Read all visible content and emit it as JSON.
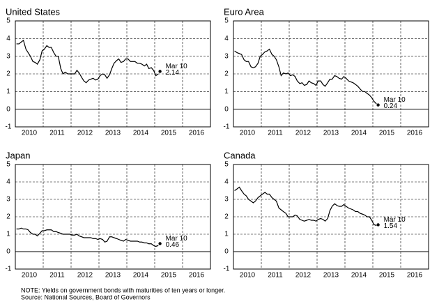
{
  "chart_data": [
    {
      "type": "line",
      "title": "United States",
      "xlim": [
        2010,
        2017
      ],
      "ylim": [
        -1,
        5
      ],
      "yticks": [
        -1,
        0,
        1,
        2,
        3,
        4,
        5
      ],
      "xticks": [
        {
          "value": 2010.5,
          "label": "2010"
        },
        {
          "value": 2011.5,
          "label": "2011"
        },
        {
          "value": 2012.5,
          "label": "2012"
        },
        {
          "value": 2013.5,
          "label": "2013"
        },
        {
          "value": 2014.5,
          "label": "2014"
        },
        {
          "value": 2015.5,
          "label": "2015"
        },
        {
          "value": 2016.5,
          "label": "2016"
        }
      ],
      "xgrid": [
        2011,
        2012,
        2013,
        2014,
        2015,
        2016
      ],
      "grid": true,
      "color": "#000000",
      "x": [
        2010.04,
        2010.13,
        2010.21,
        2010.29,
        2010.38,
        2010.46,
        2010.54,
        2010.63,
        2010.71,
        2010.79,
        2010.88,
        2010.96,
        2011.04,
        2011.13,
        2011.21,
        2011.29,
        2011.38,
        2011.46,
        2011.54,
        2011.63,
        2011.71,
        2011.79,
        2011.88,
        2011.96,
        2012.04,
        2012.13,
        2012.21,
        2012.29,
        2012.38,
        2012.46,
        2012.54,
        2012.63,
        2012.71,
        2012.79,
        2012.88,
        2012.96,
        2013.04,
        2013.13,
        2013.21,
        2013.29,
        2013.38,
        2013.46,
        2013.54,
        2013.63,
        2013.71,
        2013.79,
        2013.88,
        2013.96,
        2014.04,
        2014.13,
        2014.21,
        2014.29,
        2014.38,
        2014.46,
        2014.54,
        2014.63,
        2014.71,
        2014.79,
        2014.88,
        2014.96,
        2015.04,
        2015.13
      ],
      "values": [
        3.7,
        3.7,
        3.8,
        3.9,
        3.4,
        3.2,
        3.0,
        2.7,
        2.65,
        2.55,
        2.8,
        3.3,
        3.4,
        3.6,
        3.5,
        3.5,
        3.2,
        3.0,
        3.0,
        2.3,
        2.0,
        2.1,
        2.0,
        2.0,
        2.0,
        2.0,
        2.2,
        2.05,
        1.8,
        1.6,
        1.5,
        1.65,
        1.7,
        1.75,
        1.65,
        1.7,
        1.9,
        2.0,
        1.95,
        1.75,
        1.95,
        2.3,
        2.6,
        2.75,
        2.85,
        2.65,
        2.7,
        2.85,
        2.85,
        2.7,
        2.7,
        2.7,
        2.6,
        2.6,
        2.55,
        2.45,
        2.55,
        2.3,
        2.35,
        2.2,
        1.9,
        2.0
      ],
      "point": {
        "x": 2015.19,
        "value": 2.14,
        "label": "Mar 10"
      }
    },
    {
      "type": "line",
      "title": "Euro Area",
      "xlim": [
        2010,
        2017
      ],
      "ylim": [
        -1,
        5
      ],
      "yticks": [
        -1,
        0,
        1,
        2,
        3,
        4,
        5
      ],
      "xticks": [
        {
          "value": 2010.5,
          "label": "2010"
        },
        {
          "value": 2011.5,
          "label": "2011"
        },
        {
          "value": 2012.5,
          "label": "2012"
        },
        {
          "value": 2013.5,
          "label": "2013"
        },
        {
          "value": 2014.5,
          "label": "2014"
        },
        {
          "value": 2015.5,
          "label": "2015"
        },
        {
          "value": 2016.5,
          "label": "2016"
        }
      ],
      "xgrid": [
        2011,
        2012,
        2013,
        2014,
        2015,
        2016
      ],
      "grid": true,
      "color": "#000000",
      "x": [
        2010.04,
        2010.13,
        2010.21,
        2010.29,
        2010.38,
        2010.46,
        2010.54,
        2010.63,
        2010.71,
        2010.79,
        2010.88,
        2010.96,
        2011.04,
        2011.13,
        2011.21,
        2011.29,
        2011.38,
        2011.46,
        2011.54,
        2011.63,
        2011.71,
        2011.79,
        2011.88,
        2011.96,
        2012.04,
        2012.13,
        2012.21,
        2012.29,
        2012.38,
        2012.46,
        2012.54,
        2012.63,
        2012.71,
        2012.79,
        2012.88,
        2012.96,
        2013.04,
        2013.13,
        2013.21,
        2013.29,
        2013.38,
        2013.46,
        2013.54,
        2013.63,
        2013.71,
        2013.79,
        2013.88,
        2013.96,
        2014.04,
        2014.13,
        2014.21,
        2014.29,
        2014.38,
        2014.46,
        2014.54,
        2014.63,
        2014.71,
        2014.79,
        2014.88,
        2014.96,
        2015.04,
        2015.13
      ],
      "values": [
        3.3,
        3.2,
        3.15,
        3.1,
        2.8,
        2.7,
        2.7,
        2.4,
        2.35,
        2.4,
        2.6,
        3.0,
        3.1,
        3.25,
        3.3,
        3.4,
        3.1,
        3.0,
        2.8,
        2.4,
        1.9,
        2.05,
        2.0,
        2.05,
        1.9,
        1.95,
        1.85,
        1.6,
        1.45,
        1.5,
        1.35,
        1.4,
        1.6,
        1.5,
        1.45,
        1.35,
        1.6,
        1.6,
        1.4,
        1.3,
        1.5,
        1.7,
        1.7,
        1.9,
        1.85,
        1.75,
        1.7,
        1.85,
        1.75,
        1.6,
        1.55,
        1.5,
        1.4,
        1.3,
        1.15,
        1.0,
        1.0,
        0.9,
        0.8,
        0.65,
        0.45,
        0.3
      ],
      "point": {
        "x": 2015.19,
        "value": 0.24,
        "label": "Mar 10"
      }
    },
    {
      "type": "line",
      "title": "Japan",
      "xlim": [
        2010,
        2017
      ],
      "ylim": [
        -1,
        5
      ],
      "yticks": [
        -1,
        0,
        1,
        2,
        3,
        4,
        5
      ],
      "xticks": [
        {
          "value": 2010.5,
          "label": "2010"
        },
        {
          "value": 2011.5,
          "label": "2011"
        },
        {
          "value": 2012.5,
          "label": "2012"
        },
        {
          "value": 2013.5,
          "label": "2013"
        },
        {
          "value": 2014.5,
          "label": "2014"
        },
        {
          "value": 2015.5,
          "label": "2015"
        },
        {
          "value": 2016.5,
          "label": "2016"
        }
      ],
      "xgrid": [
        2011,
        2012,
        2013,
        2014,
        2015,
        2016
      ],
      "grid": true,
      "color": "#000000",
      "x": [
        2010.04,
        2010.13,
        2010.21,
        2010.29,
        2010.38,
        2010.46,
        2010.54,
        2010.63,
        2010.71,
        2010.79,
        2010.88,
        2010.96,
        2011.04,
        2011.13,
        2011.21,
        2011.29,
        2011.38,
        2011.46,
        2011.54,
        2011.63,
        2011.71,
        2011.79,
        2011.88,
        2011.96,
        2012.04,
        2012.13,
        2012.21,
        2012.29,
        2012.38,
        2012.46,
        2012.54,
        2012.63,
        2012.71,
        2012.79,
        2012.88,
        2012.96,
        2013.04,
        2013.13,
        2013.21,
        2013.29,
        2013.38,
        2013.46,
        2013.54,
        2013.63,
        2013.71,
        2013.79,
        2013.88,
        2013.96,
        2014.04,
        2014.13,
        2014.21,
        2014.29,
        2014.38,
        2014.46,
        2014.54,
        2014.63,
        2014.71,
        2014.79,
        2014.88,
        2014.96,
        2015.04,
        2015.13
      ],
      "values": [
        1.3,
        1.3,
        1.35,
        1.3,
        1.3,
        1.25,
        1.1,
        1.0,
        1.0,
        0.9,
        1.05,
        1.2,
        1.2,
        1.25,
        1.25,
        1.25,
        1.15,
        1.15,
        1.1,
        1.05,
        1.0,
        1.0,
        1.0,
        1.0,
        0.95,
        0.95,
        1.0,
        0.9,
        0.85,
        0.8,
        0.8,
        0.8,
        0.8,
        0.75,
        0.75,
        0.7,
        0.75,
        0.7,
        0.55,
        0.6,
        0.85,
        0.85,
        0.8,
        0.75,
        0.7,
        0.65,
        0.6,
        0.7,
        0.65,
        0.6,
        0.6,
        0.6,
        0.6,
        0.55,
        0.55,
        0.5,
        0.5,
        0.45,
        0.45,
        0.35,
        0.3,
        0.35
      ],
      "point": {
        "x": 2015.19,
        "value": 0.46,
        "label": "Mar 10"
      }
    },
    {
      "type": "line",
      "title": "Canada",
      "xlim": [
        2010,
        2017
      ],
      "ylim": [
        -1,
        5
      ],
      "yticks": [
        -1,
        0,
        1,
        2,
        3,
        4,
        5
      ],
      "xticks": [
        {
          "value": 2010.5,
          "label": "2010"
        },
        {
          "value": 2011.5,
          "label": "2011"
        },
        {
          "value": 2012.5,
          "label": "2012"
        },
        {
          "value": 2013.5,
          "label": "2013"
        },
        {
          "value": 2014.5,
          "label": "2014"
        },
        {
          "value": 2015.5,
          "label": "2015"
        },
        {
          "value": 2016.5,
          "label": "2016"
        }
      ],
      "xgrid": [
        2011,
        2012,
        2013,
        2014,
        2015,
        2016
      ],
      "grid": true,
      "color": "#000000",
      "x": [
        2010.04,
        2010.13,
        2010.21,
        2010.29,
        2010.38,
        2010.46,
        2010.54,
        2010.63,
        2010.71,
        2010.79,
        2010.88,
        2010.96,
        2011.04,
        2011.13,
        2011.21,
        2011.29,
        2011.38,
        2011.46,
        2011.54,
        2011.63,
        2011.71,
        2011.79,
        2011.88,
        2011.96,
        2012.04,
        2012.13,
        2012.21,
        2012.29,
        2012.38,
        2012.46,
        2012.54,
        2012.63,
        2012.71,
        2012.79,
        2012.88,
        2012.96,
        2013.04,
        2013.13,
        2013.21,
        2013.29,
        2013.38,
        2013.46,
        2013.54,
        2013.63,
        2013.71,
        2013.79,
        2013.88,
        2013.96,
        2014.04,
        2014.13,
        2014.21,
        2014.29,
        2014.38,
        2014.46,
        2014.54,
        2014.63,
        2014.71,
        2014.79,
        2014.88,
        2014.96,
        2015.04,
        2015.13
      ],
      "values": [
        3.5,
        3.6,
        3.7,
        3.5,
        3.3,
        3.2,
        3.0,
        2.9,
        2.8,
        2.9,
        3.1,
        3.2,
        3.3,
        3.4,
        3.3,
        3.3,
        3.1,
        3.0,
        2.9,
        2.5,
        2.4,
        2.3,
        2.2,
        2.0,
        2.0,
        2.0,
        2.1,
        2.05,
        1.85,
        1.8,
        1.75,
        1.8,
        1.85,
        1.8,
        1.8,
        1.75,
        1.85,
        1.9,
        1.85,
        1.75,
        1.9,
        2.35,
        2.6,
        2.75,
        2.65,
        2.6,
        2.6,
        2.7,
        2.6,
        2.5,
        2.45,
        2.4,
        2.3,
        2.3,
        2.2,
        2.15,
        2.1,
        2.0,
        2.0,
        1.8,
        1.55,
        1.5
      ],
      "point": {
        "x": 2015.19,
        "value": 1.54,
        "label": "Mar 10"
      }
    }
  ],
  "notes": [
    "NOTE:  Yields on government bonds with maturities of ten years or longer.",
    "Source:  National Sources, Board of Governors"
  ]
}
